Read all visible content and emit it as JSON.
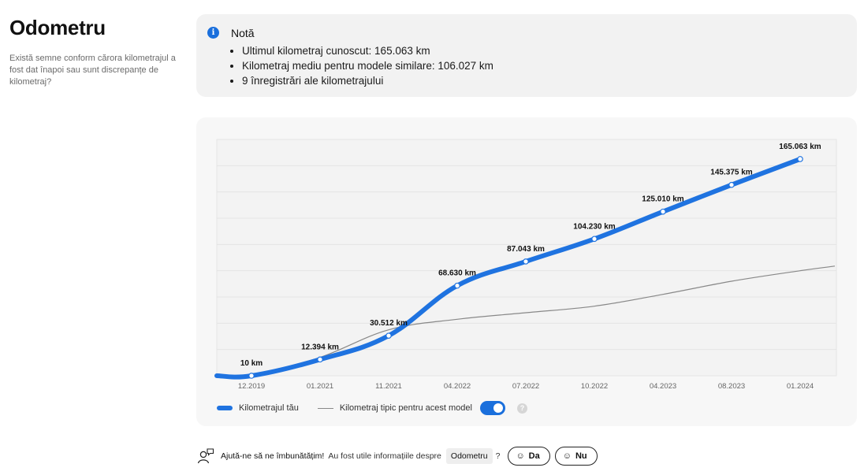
{
  "header": {
    "title": "Odometru",
    "description": "Există semne conform cărora kilometrajul a fost dat înapoi sau sunt discrepanțe de kilometraj?"
  },
  "note": {
    "icon": "info-icon",
    "title": "Notă",
    "items": [
      "Ultimul kilometraj cunoscut: 165.063 km",
      "Kilometraj mediu pentru modele similare: 106.027 km",
      "9 înregistrări ale kilometrajului"
    ]
  },
  "chart_data": {
    "type": "line",
    "x_categories": [
      "12.2019",
      "01.2021",
      "11.2021",
      "04.2022",
      "07.2022",
      "10.2022",
      "04.2023",
      "08.2023",
      "01.2024"
    ],
    "grid": true,
    "series": [
      {
        "name": "Kilometrajul tău",
        "color": "#1f73e0",
        "values": [
          10,
          12394,
          30512,
          68630,
          87043,
          104230,
          125010,
          145375,
          165063
        ],
        "labels": [
          "10 km",
          "12.394 km",
          "30.512 km",
          "68.630 km",
          "87.043 km",
          "104.230 km",
          "125.010 km",
          "145.375 km",
          "165.063 km"
        ]
      },
      {
        "name": "Kilometraj tipic pentru acest model",
        "color": "#888888",
        "values": [
          0,
          14000,
          35000,
          43000,
          48000,
          53000,
          62000,
          72000,
          80000
        ]
      }
    ],
    "ylim": [
      0,
      180000
    ]
  },
  "legend": {
    "series1": "Kilometrajul tău",
    "series2": "Kilometraj tipic pentru acest model",
    "toggle_on": true,
    "help_icon": "question-icon",
    "help_glyph": "?"
  },
  "feedback": {
    "icon": "user-feedback-icon",
    "prompt": "Ajută-ne să ne îmbunătățim!",
    "question": "Au fost utile informațiile despre",
    "topic": "Odometru",
    "question_mark": "?",
    "yes": "Da",
    "no": "Nu",
    "smiley": "☺"
  }
}
